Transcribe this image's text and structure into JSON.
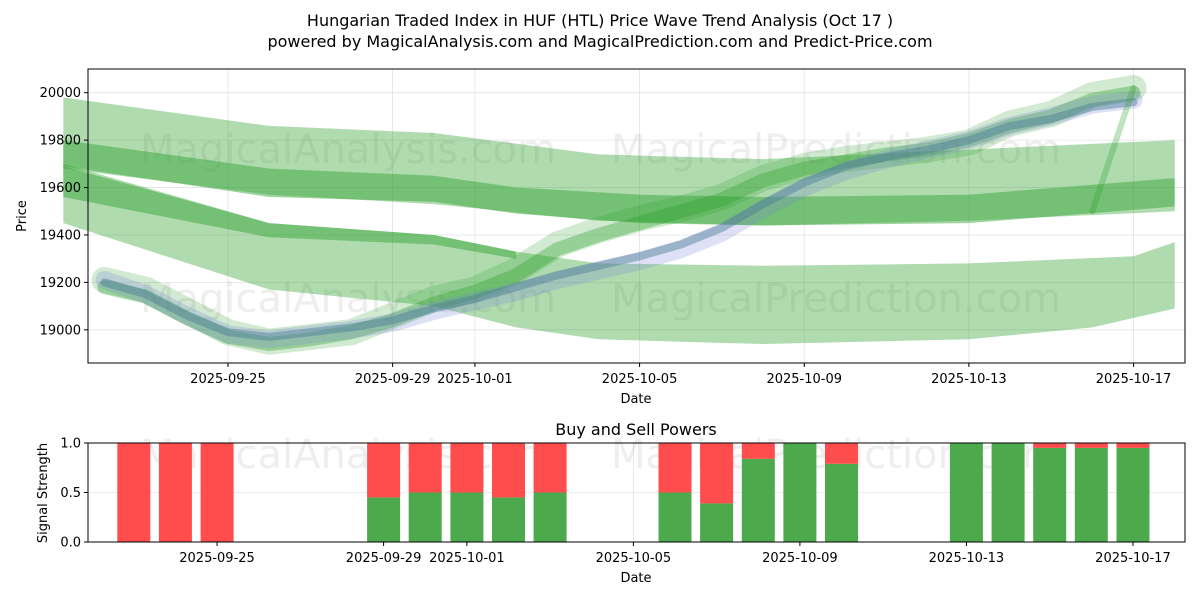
{
  "chart_data": [
    {
      "type": "line",
      "title": "Hungarian Traded Index in HUF (HTL) Price Wave Trend Analysis (Oct 17 )",
      "subtitle": "powered by MagicalAnalysis.com and MagicalPrediction.com and Predict-Price.com",
      "xlabel": "Date",
      "ylabel": "Price",
      "ylim": [
        18860,
        20100
      ],
      "xlim": [
        "2025-09-21",
        "2025-10-18"
      ],
      "x_ticks": [
        "2025-09-25",
        "2025-09-29",
        "2025-10-01",
        "2025-10-05",
        "2025-10-09",
        "2025-10-13",
        "2025-10-17"
      ],
      "y_ticks": [
        19000,
        19200,
        19400,
        19600,
        19800,
        20000
      ],
      "grid": true,
      "watermarks": [
        "MagicalAnalysis.com",
        "MagicalPrediction.com"
      ],
      "bands": [
        {
          "color": "#2ca02c",
          "opacity": 0.38,
          "upper": [
            [
              "2025-09-21",
              19980
            ],
            [
              "2025-09-26",
              19860
            ],
            [
              "2025-09-30",
              19830
            ],
            [
              "2025-10-04",
              19740
            ],
            [
              "2025-10-08",
              19720
            ],
            [
              "2025-10-13",
              19760
            ],
            [
              "2025-10-18",
              19800
            ]
          ],
          "lower": [
            [
              "2025-09-21",
              19680
            ],
            [
              "2025-09-26",
              19570
            ],
            [
              "2025-09-30",
              19530
            ],
            [
              "2025-10-04",
              19460
            ],
            [
              "2025-10-08",
              19440
            ],
            [
              "2025-10-13",
              19460
            ],
            [
              "2025-10-18",
              19500
            ]
          ]
        },
        {
          "color": "#2ca02c",
          "opacity": 0.38,
          "upper": [
            [
              "2025-09-21",
              19700
            ],
            [
              "2025-09-26",
              19450
            ],
            [
              "2025-09-30",
              19400
            ],
            [
              "2025-10-02",
              19330
            ],
            [
              "2025-10-04",
              19280
            ],
            [
              "2025-10-08",
              19270
            ],
            [
              "2025-10-13",
              19280
            ],
            [
              "2025-10-17",
              19310
            ],
            [
              "2025-10-18",
              19370
            ]
          ],
          "lower": [
            [
              "2025-09-21",
              19450
            ],
            [
              "2025-09-26",
              19170
            ],
            [
              "2025-09-30",
              19100
            ],
            [
              "2025-10-02",
              19010
            ],
            [
              "2025-10-04",
              18960
            ],
            [
              "2025-10-06",
              18950
            ],
            [
              "2025-10-08",
              18940
            ],
            [
              "2025-10-13",
              18960
            ],
            [
              "2025-10-16",
              19010
            ],
            [
              "2025-10-18",
              19090
            ]
          ]
        },
        {
          "color": "#2ca02c",
          "opacity": 0.45,
          "upper": [
            [
              "2025-09-21",
              19800
            ],
            [
              "2025-09-26",
              19680
            ],
            [
              "2025-09-30",
              19650
            ],
            [
              "2025-10-02",
              19600
            ],
            [
              "2025-10-05",
              19570
            ],
            [
              "2025-10-08",
              19560
            ],
            [
              "2025-10-13",
              19570
            ],
            [
              "2025-10-18",
              19640
            ]
          ],
          "lower": [
            [
              "2025-09-21",
              19690
            ],
            [
              "2025-09-26",
              19560
            ],
            [
              "2025-09-30",
              19540
            ],
            [
              "2025-10-02",
              19490
            ],
            [
              "2025-10-05",
              19450
            ],
            [
              "2025-10-08",
              19440
            ],
            [
              "2025-10-13",
              19450
            ],
            [
              "2025-10-18",
              19520
            ]
          ]
        },
        {
          "color": "#2ca02c",
          "opacity": 0.45,
          "upper": [
            [
              "2025-09-21",
              19690
            ],
            [
              "2025-09-26",
              19450
            ],
            [
              "2025-09-30",
              19400
            ],
            [
              "2025-10-02",
              19330
            ]
          ],
          "lower": [
            [
              "2025-09-21",
              19560
            ],
            [
              "2025-09-26",
              19390
            ],
            [
              "2025-09-30",
              19360
            ],
            [
              "2025-10-02",
              19300
            ]
          ]
        }
      ],
      "series": [
        {
          "color": "#2ca02c",
          "width": 26,
          "opacity": 0.22,
          "values": [
            [
              "2025-09-22",
              19210
            ],
            [
              "2025-09-23",
              19170
            ],
            [
              "2025-09-24",
              19080
            ],
            [
              "2025-09-25",
              18990
            ],
            [
              "2025-09-26",
              18950
            ],
            [
              "2025-09-27",
              18970
            ],
            [
              "2025-09-28",
              18990
            ],
            [
              "2025-09-29",
              19060
            ],
            [
              "2025-09-30",
              19130
            ],
            [
              "2025-10-01",
              19170
            ],
            [
              "2025-10-02",
              19250
            ],
            [
              "2025-10-03",
              19360
            ],
            [
              "2025-10-04",
              19420
            ],
            [
              "2025-10-05",
              19470
            ],
            [
              "2025-10-06",
              19510
            ],
            [
              "2025-10-07",
              19560
            ],
            [
              "2025-10-08",
              19640
            ],
            [
              "2025-10-09",
              19690
            ],
            [
              "2025-10-10",
              19720
            ],
            [
              "2025-10-11",
              19740
            ],
            [
              "2025-10-12",
              19760
            ],
            [
              "2025-10-13",
              19790
            ],
            [
              "2025-10-14",
              19870
            ],
            [
              "2025-10-15",
              19910
            ],
            [
              "2025-10-16",
              19990
            ],
            [
              "2025-10-17",
              20020
            ]
          ]
        },
        {
          "color": "#2ca02c",
          "width": 14,
          "opacity": 0.35,
          "values": [
            [
              "2025-09-22",
              19180
            ],
            [
              "2025-09-23",
              19140
            ],
            [
              "2025-09-24",
              19050
            ],
            [
              "2025-09-25",
              18970
            ],
            [
              "2025-09-26",
              18940
            ],
            [
              "2025-09-27",
              18960
            ],
            [
              "2025-09-28",
              18990
            ],
            [
              "2025-09-29",
              19040
            ],
            [
              "2025-09-30",
              19110
            ],
            [
              "2025-10-01",
              19160
            ],
            [
              "2025-10-02",
              19230
            ],
            [
              "2025-10-03",
              19340
            ],
            [
              "2025-10-04",
              19400
            ],
            [
              "2025-10-05",
              19450
            ],
            [
              "2025-10-06",
              19500
            ],
            [
              "2025-10-07",
              19550
            ],
            [
              "2025-10-08",
              19630
            ],
            [
              "2025-10-09",
              19680
            ],
            [
              "2025-10-10",
              19710
            ],
            [
              "2025-10-11",
              19740
            ],
            [
              "2025-10-12",
              19760
            ],
            [
              "2025-10-13",
              19800
            ],
            [
              "2025-10-14",
              19860
            ],
            [
              "2025-10-15",
              19900
            ],
            [
              "2025-10-16",
              19970
            ],
            [
              "2025-10-17",
              20000
            ]
          ]
        },
        {
          "color": "#7b83d6",
          "width": 18,
          "opacity": 0.25,
          "values": [
            [
              "2025-09-22",
              19210
            ],
            [
              "2025-09-23",
              19150
            ],
            [
              "2025-09-24",
              19060
            ],
            [
              "2025-09-25",
              18980
            ],
            [
              "2025-09-26",
              18960
            ],
            [
              "2025-09-27",
              18980
            ],
            [
              "2025-09-28",
              19000
            ],
            [
              "2025-09-29",
              19030
            ],
            [
              "2025-09-30",
              19080
            ],
            [
              "2025-10-01",
              19120
            ],
            [
              "2025-10-02",
              19160
            ],
            [
              "2025-10-03",
              19210
            ],
            [
              "2025-10-04",
              19250
            ],
            [
              "2025-10-05",
              19290
            ],
            [
              "2025-10-06",
              19340
            ],
            [
              "2025-10-07",
              19410
            ],
            [
              "2025-10-08",
              19510
            ],
            [
              "2025-10-09",
              19600
            ],
            [
              "2025-10-10",
              19670
            ],
            [
              "2025-10-11",
              19720
            ],
            [
              "2025-10-12",
              19760
            ],
            [
              "2025-10-13",
              19800
            ],
            [
              "2025-10-14",
              19860
            ],
            [
              "2025-10-15",
              19900
            ],
            [
              "2025-10-16",
              19950
            ],
            [
              "2025-10-17",
              19970
            ]
          ]
        },
        {
          "color": "#4a7a9a",
          "width": 8,
          "opacity": 0.45,
          "values": [
            [
              "2025-09-22",
              19200
            ],
            [
              "2025-09-23",
              19150
            ],
            [
              "2025-09-24",
              19060
            ],
            [
              "2025-09-25",
              18990
            ],
            [
              "2025-09-26",
              18970
            ],
            [
              "2025-09-27",
              18990
            ],
            [
              "2025-09-28",
              19010
            ],
            [
              "2025-09-29",
              19040
            ],
            [
              "2025-09-30",
              19090
            ],
            [
              "2025-10-01",
              19130
            ],
            [
              "2025-10-02",
              19180
            ],
            [
              "2025-10-03",
              19230
            ],
            [
              "2025-10-04",
              19270
            ],
            [
              "2025-10-05",
              19310
            ],
            [
              "2025-10-06",
              19360
            ],
            [
              "2025-10-07",
              19430
            ],
            [
              "2025-10-08",
              19530
            ],
            [
              "2025-10-09",
              19620
            ],
            [
              "2025-10-10",
              19690
            ],
            [
              "2025-10-11",
              19730
            ],
            [
              "2025-10-12",
              19760
            ],
            [
              "2025-10-13",
              19800
            ],
            [
              "2025-10-14",
              19860
            ],
            [
              "2025-10-15",
              19890
            ],
            [
              "2025-10-16",
              19940
            ],
            [
              "2025-10-17",
              19960
            ]
          ]
        },
        {
          "color": "#2ca02c",
          "width": 6,
          "opacity": 0.3,
          "values": [
            [
              "2025-10-16",
              19500
            ],
            [
              "2025-10-17",
              20020
            ]
          ]
        }
      ]
    },
    {
      "type": "bar",
      "title": "Buy and Sell Powers",
      "xlabel": "Date",
      "ylabel": "Signal Strength",
      "ylim": [
        0,
        1
      ],
      "y_ticks": [
        "0.0",
        "0.5",
        "1.0"
      ],
      "x_ticks": [
        "2025-09-25",
        "2025-09-29",
        "2025-10-01",
        "2025-10-05",
        "2025-10-09",
        "2025-10-13",
        "2025-10-17"
      ],
      "xlim": [
        "2025-09-21",
        "2025-10-18"
      ],
      "grid": true,
      "colors": {
        "buy": "#4caa4c",
        "sell": "#ff4c4c"
      },
      "dates": [
        "2025-09-23",
        "2025-09-24",
        "2025-09-25",
        "2025-09-29",
        "2025-09-30",
        "2025-10-01",
        "2025-10-02",
        "2025-10-03",
        "2025-10-06",
        "2025-10-07",
        "2025-10-08",
        "2025-10-09",
        "2025-10-10",
        "2025-10-13",
        "2025-10-14",
        "2025-10-15",
        "2025-10-16",
        "2025-10-17"
      ],
      "buy": [
        0,
        0,
        0,
        0.45,
        0.5,
        0.5,
        0.45,
        0.5,
        0.5,
        0.39,
        0.84,
        1.0,
        0.79,
        1.0,
        1.0,
        0.95,
        0.95,
        0.95
      ],
      "sell": [
        1.0,
        1.0,
        1.0,
        0.55,
        0.5,
        0.5,
        0.55,
        0.5,
        0.5,
        0.61,
        0.16,
        0.0,
        0.21,
        0.0,
        0.0,
        0.05,
        0.05,
        0.05
      ]
    }
  ]
}
